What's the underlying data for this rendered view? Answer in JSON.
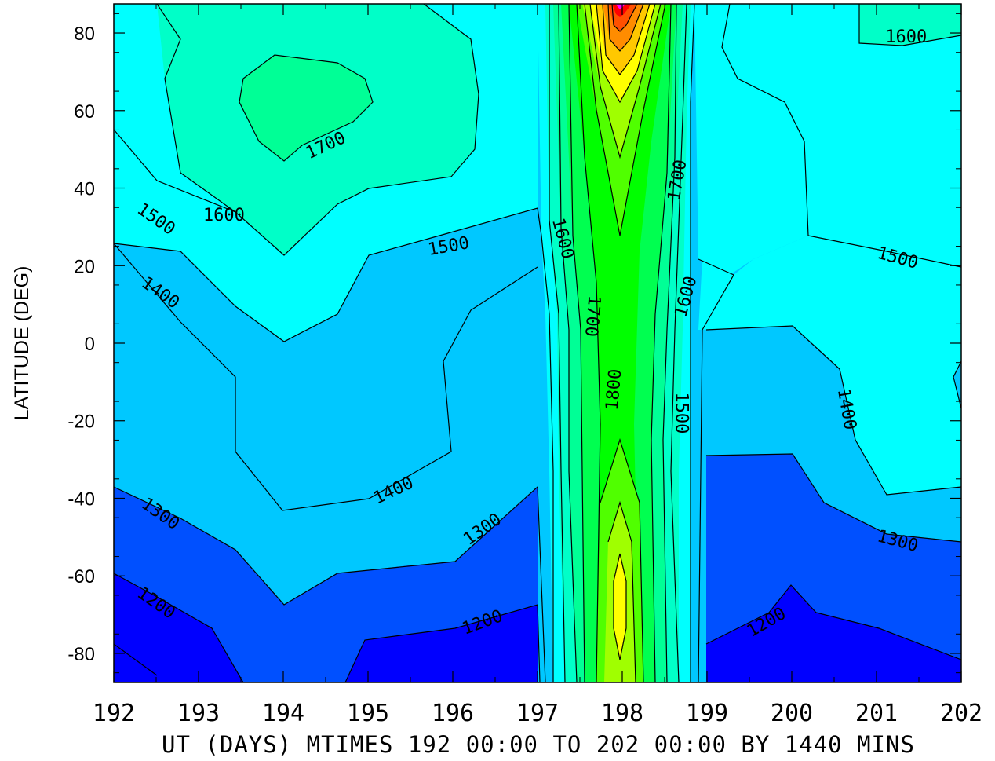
{
  "chart_data": {
    "type": "heatmap",
    "subtype": "filled-contour",
    "title": "",
    "xlabel": "UT (DAYS) MTIMES 192 00:00 TO 202 00:00 BY 1440 MINS",
    "ylabel": "LATITUDE (DEG)",
    "xlim": [
      192,
      202
    ],
    "ylim": [
      -87.5,
      87.5
    ],
    "x_ticks": [
      192,
      193,
      194,
      195,
      196,
      197,
      198,
      199,
      200,
      201,
      202
    ],
    "y_ticks": [
      -80,
      -60,
      -40,
      -20,
      0,
      20,
      40,
      60,
      80
    ],
    "y_tick_labels": [
      "-80",
      "-60",
      "-40",
      "-20",
      "0",
      "20",
      "40",
      "60",
      "80"
    ],
    "contour_interval": 50,
    "labeled_levels": [
      "1200",
      "1300",
      "1400",
      "1500",
      "1600",
      "1700",
      "1800"
    ],
    "colormap": [
      "#0000ff",
      "#0050ff",
      "#00a0ff",
      "#00c8ff",
      "#00ffff",
      "#00ffc8",
      "#00ff96",
      "#00ff50",
      "#00ff00",
      "#50ff00",
      "#a0ff00",
      "#ffff00",
      "#ffc800",
      "#ff8c00",
      "#ff5000",
      "#ff0000",
      "#ff00ff"
    ],
    "contour_labels": [
      {
        "text": "1600",
        "x": 201.35,
        "y": 79
      },
      {
        "text": "1700",
        "x": 194.5,
        "y": 51
      },
      {
        "text": "1600",
        "x": 193.3,
        "y": 33
      },
      {
        "text": "1500",
        "x": 192.5,
        "y": 32
      },
      {
        "text": "1500",
        "x": 195.95,
        "y": 25
      },
      {
        "text": "1400",
        "x": 192.55,
        "y": 13
      },
      {
        "text": "1600",
        "x": 197.3,
        "y": 27
      },
      {
        "text": "1700",
        "x": 197.65,
        "y": 7
      },
      {
        "text": "1700",
        "x": 198.65,
        "y": 42
      },
      {
        "text": "1600",
        "x": 198.75,
        "y": 12
      },
      {
        "text": "1800",
        "x": 197.9,
        "y": -12
      },
      {
        "text": "1500",
        "x": 198.7,
        "y": -18
      },
      {
        "text": "1500",
        "x": 201.25,
        "y": 22
      },
      {
        "text": "1400",
        "x": 200.65,
        "y": -17
      },
      {
        "text": "1400",
        "x": 195.3,
        "y": -38
      },
      {
        "text": "1300",
        "x": 196.35,
        "y": -48
      },
      {
        "text": "1300",
        "x": 192.55,
        "y": -44
      },
      {
        "text": "1300",
        "x": 201.25,
        "y": -51
      },
      {
        "text": "1200",
        "x": 192.5,
        "y": -67
      },
      {
        "text": "1200",
        "x": 196.35,
        "y": -72
      },
      {
        "text": "1200",
        "x": 199.7,
        "y": -72
      }
    ]
  }
}
